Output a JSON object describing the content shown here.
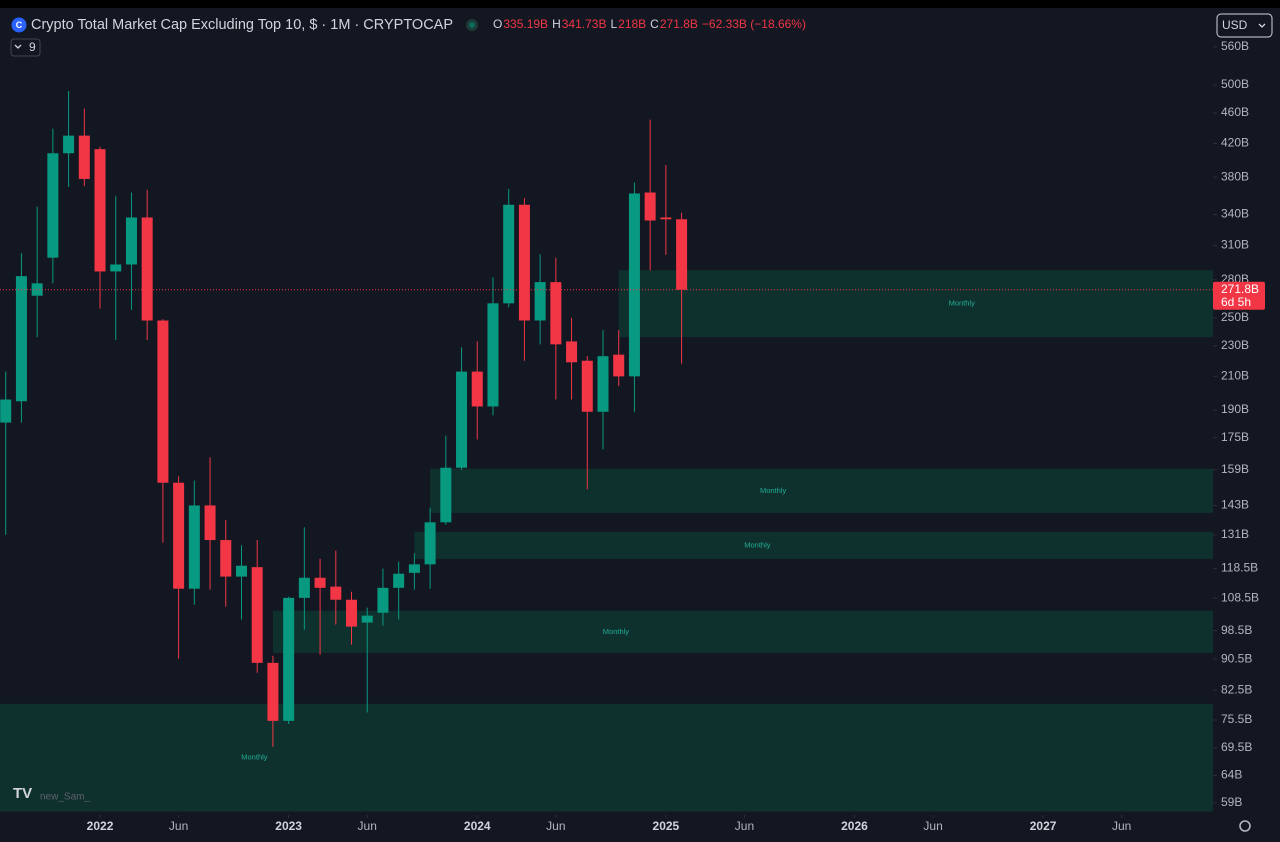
{
  "chart_data": {
    "type": "candlestick",
    "title": "Crypto Total Market Cap Excluding Top 10, $ · 1M · CRYPTOCAP",
    "ohlc_legend": [
      {
        "key": "O",
        "text": "335.19B"
      },
      {
        "key": "H",
        "text": "341.73B"
      },
      {
        "key": "L",
        "text": "218B"
      },
      {
        "key": "C",
        "text": "271.8B"
      }
    ],
    "change": "−62.33B (−18.66%)",
    "indicator_count": "9",
    "currency": "USD",
    "watermark": "new_Sam_",
    "last_price_label": "271.8B",
    "countdown": "6d 5h",
    "up_color": "#089981",
    "down_color": "#f23645",
    "zone_color": "#0f3b33",
    "zone_label_color": "#22ab94",
    "log_scale": true,
    "grid": false,
    "x": [
      "2021-07",
      "2021-08",
      "2021-09",
      "2021-10",
      "2021-11",
      "2021-12",
      "2022-01",
      "2022-02",
      "2022-03",
      "2022-04",
      "2022-05",
      "2022-06",
      "2022-07",
      "2022-08",
      "2022-09",
      "2022-10",
      "2022-11",
      "2022-12",
      "2023-01",
      "2023-02",
      "2023-03",
      "2023-04",
      "2023-05",
      "2023-06",
      "2023-07",
      "2023-08",
      "2023-09",
      "2023-10",
      "2023-11",
      "2023-12",
      "2024-01",
      "2024-02",
      "2024-03",
      "2024-04",
      "2024-05",
      "2024-06",
      "2024-07",
      "2024-08",
      "2024-09",
      "2024-10",
      "2024-11",
      "2024-12",
      "2025-01",
      "2025-02"
    ],
    "open": [
      183,
      195,
      267,
      299,
      408,
      430,
      413,
      287,
      293,
      337,
      248,
      153,
      111.6,
      143,
      129,
      115.7,
      119,
      89.5,
      75.3,
      108.6,
      115.3,
      112.3,
      108,
      100.9,
      103.9,
      111.9,
      117,
      120,
      136,
      160,
      213,
      192,
      261,
      350,
      248,
      278,
      233,
      220,
      189,
      224,
      210,
      363,
      337,
      335.19
    ],
    "high": [
      213,
      303,
      348,
      439,
      491,
      466,
      416,
      359,
      363,
      366,
      249,
      156,
      154,
      165,
      137,
      127,
      129,
      91.4,
      109,
      134,
      122,
      125,
      110.6,
      105.5,
      118.5,
      121,
      124,
      142,
      176,
      229,
      233,
      282,
      367,
      357,
      302,
      299,
      250,
      223,
      241,
      241,
      374,
      451,
      394,
      341.73
    ],
    "low": [
      131,
      183,
      236,
      277,
      369,
      370,
      257,
      234,
      256,
      234,
      128,
      90.6,
      106.4,
      111.3,
      105.8,
      101.8,
      86.9,
      69.7,
      74.6,
      98.8,
      91.7,
      100.3,
      94.5,
      77.2,
      100,
      101.8,
      111.3,
      111.6,
      135,
      159,
      174,
      187,
      258,
      220,
      231,
      196,
      196,
      150,
      169,
      204,
      189,
      288,
      301.5,
      218
    ],
    "close": [
      196,
      283,
      277,
      408,
      430,
      378,
      287,
      293,
      337,
      248,
      153,
      111.6,
      143,
      129,
      115.7,
      119.5,
      89.5,
      75.3,
      108.6,
      115.3,
      111.9,
      108,
      99.7,
      103,
      111.9,
      116.7,
      120,
      136,
      160,
      213,
      192,
      261,
      350,
      248,
      278,
      231,
      219,
      189,
      223,
      210,
      362,
      334,
      335.19,
      271.8
    ],
    "zones": [
      {
        "label": "Monthly",
        "start": "2024-10",
        "top": 288,
        "bottom": 236
      },
      {
        "label": "Monthly",
        "start": "2023-10",
        "top": 159.5,
        "bottom": 139.9
      },
      {
        "label": "Monthly",
        "start": "2023-09",
        "top": 132.2,
        "bottom": 122
      },
      {
        "label": "Monthly",
        "start": "2022-12",
        "top": 104.5,
        "bottom": 92.2
      },
      {
        "label": "Monthly",
        "start": "2021-01",
        "top": 79.2,
        "bottom": 57.5
      }
    ],
    "xlim": [
      "2021-06",
      "2027-12"
    ],
    "xticks": [
      {
        "value": "2022-01",
        "label": "2022"
      },
      {
        "value": "2022-06",
        "label": "Jun"
      },
      {
        "value": "2023-01",
        "label": "2023"
      },
      {
        "value": "2023-06",
        "label": "Jun"
      },
      {
        "value": "2024-01",
        "label": "2024"
      },
      {
        "value": "2024-06",
        "label": "Jun"
      },
      {
        "value": "2025-01",
        "label": "2025"
      },
      {
        "value": "2025-06",
        "label": "Jun"
      },
      {
        "value": "2026-01",
        "label": "2026"
      },
      {
        "value": "2026-06",
        "label": "Jun"
      },
      {
        "value": "2027-01",
        "label": "2027"
      },
      {
        "value": "2027-06",
        "label": "Jun"
      }
    ],
    "ylim": [
      56.9,
      625
    ],
    "yticks": [
      {
        "value": 560,
        "label": "560B"
      },
      {
        "value": 500,
        "label": "500B"
      },
      {
        "value": 460,
        "label": "460B"
      },
      {
        "value": 420,
        "label": "420B"
      },
      {
        "value": 380,
        "label": "380B"
      },
      {
        "value": 340,
        "label": "340B"
      },
      {
        "value": 310,
        "label": "310B"
      },
      {
        "value": 280,
        "label": "280B"
      },
      {
        "value": 250,
        "label": "250B"
      },
      {
        "value": 230,
        "label": "230B"
      },
      {
        "value": 210,
        "label": "210B"
      },
      {
        "value": 190,
        "label": "190B"
      },
      {
        "value": 175,
        "label": "175B"
      },
      {
        "value": 159,
        "label": "159B"
      },
      {
        "value": 143,
        "label": "143B"
      },
      {
        "value": 131,
        "label": "131B"
      },
      {
        "value": 118.5,
        "label": "118.5B"
      },
      {
        "value": 108.5,
        "label": "108.5B"
      },
      {
        "value": 98.5,
        "label": "98.5B"
      },
      {
        "value": 90.5,
        "label": "90.5B"
      },
      {
        "value": 82.5,
        "label": "82.5B"
      },
      {
        "value": 75.5,
        "label": "75.5B"
      },
      {
        "value": 69.5,
        "label": "69.5B"
      },
      {
        "value": 64,
        "label": "64B"
      },
      {
        "value": 59,
        "label": "59B"
      }
    ]
  }
}
